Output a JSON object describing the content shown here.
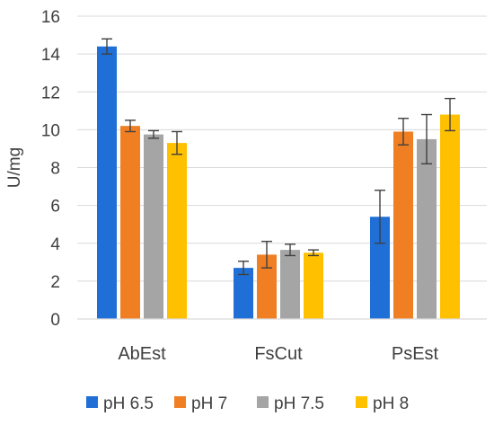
{
  "chart_data": {
    "type": "bar",
    "categories": [
      "AbEst",
      "FsCut",
      "PsEst"
    ],
    "ylabel": "U/mg",
    "ylim": [
      0,
      16
    ],
    "yticks": [
      0,
      2,
      4,
      6,
      8,
      10,
      12,
      14,
      16
    ],
    "grid": true,
    "legend_position": "bottom",
    "series": [
      {
        "name": "pH 6.5",
        "color": "#1f6fd6",
        "values": [
          14.4,
          2.7,
          5.4
        ],
        "errors": [
          0.4,
          0.35,
          1.4
        ]
      },
      {
        "name": "pH 7",
        "color": "#f07f24",
        "values": [
          10.2,
          3.4,
          9.9
        ],
        "errors": [
          0.3,
          0.7,
          0.7
        ]
      },
      {
        "name": "pH 7.5",
        "color": "#a5a5a5",
        "values": [
          9.75,
          3.65,
          9.5
        ],
        "errors": [
          0.2,
          0.3,
          1.3
        ]
      },
      {
        "name": "pH 8",
        "color": "#ffc000",
        "values": [
          9.3,
          3.5,
          10.8
        ],
        "errors": [
          0.6,
          0.15,
          0.85
        ]
      }
    ]
  }
}
